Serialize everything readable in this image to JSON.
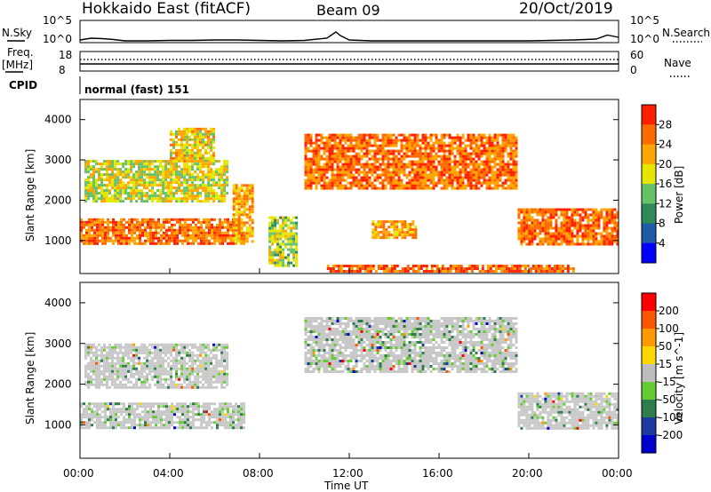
{
  "header": {
    "station_title": "Hokkaido East (fitACF)",
    "beam": "Beam 09",
    "date": "20/Oct/2019"
  },
  "nsky_panel": {
    "left_label": "N.Sky",
    "right_label": "N.Search",
    "left_ticks": [
      "10^5",
      "10^0"
    ],
    "right_ticks": [
      "10^5",
      "10^0"
    ]
  },
  "freq_panel": {
    "left_label_line1": "Freq.",
    "left_label_line2": "[MHz]",
    "left_ticks": [
      "18",
      "8"
    ],
    "right_label": "Nave",
    "right_ticks": [
      "60",
      "0"
    ]
  },
  "cpid_panel": {
    "label": "CPID",
    "mode_text": "normal (fast) 151"
  },
  "x_axis": {
    "label": "Time UT",
    "ticks": [
      "00:00",
      "04:00",
      "08:00",
      "12:00",
      "16:00",
      "20:00",
      "00:00"
    ]
  },
  "colors": {
    "power_scale": [
      "#0000ff",
      "#1f5aa8",
      "#2e8b57",
      "#66c266",
      "#e5e500",
      "#ffa500",
      "#ff6a00",
      "#ff2000"
    ],
    "velocity_scale": [
      "#0000cc",
      "#1a3aa0",
      "#2e7d4a",
      "#66cc33",
      "#bdbdbd",
      "#ffd700",
      "#ff9900",
      "#ff5500",
      "#ff0000"
    ],
    "grey": "#c8c8c8",
    "white": "#ffffff"
  },
  "chart_data": [
    {
      "type": "line",
      "name": "nsky-nsearch",
      "x_range_hours": [
        0,
        24
      ],
      "ylim": [
        0,
        5
      ],
      "series": [
        {
          "name": "N.Sky",
          "x": [
            0,
            0.5,
            1,
            1.5,
            2,
            3,
            4,
            5,
            6,
            7,
            8,
            9,
            10,
            11,
            11.4,
            11.6,
            12,
            13,
            14,
            16,
            18,
            20,
            21,
            22,
            23,
            23.5,
            24
          ],
          "values": [
            0.6,
            1.0,
            0.9,
            0.7,
            0.4,
            0.4,
            0.5,
            0.5,
            0.6,
            0.6,
            0.5,
            0.4,
            0.5,
            1.0,
            2.4,
            1.6,
            0.6,
            0.4,
            0.4,
            0.4,
            0.4,
            0.4,
            0.5,
            0.6,
            0.8,
            1.7,
            1.2
          ]
        }
      ]
    },
    {
      "type": "line",
      "name": "freq-nave",
      "x_range_hours": [
        0,
        24
      ],
      "series": [
        {
          "name": "Freq.",
          "values": [
            11,
            11
          ]
        },
        {
          "name": "Nave",
          "values": [
            27,
            27
          ]
        }
      ]
    },
    {
      "type": "heatmap",
      "name": "power",
      "title": "",
      "xlabel": "",
      "ylabel": "Slant Range [km]",
      "x_range_hours": [
        0,
        24
      ],
      "ylim_km": [
        180,
        4500
      ],
      "y_ticks": [
        "1000",
        "2000",
        "3000",
        "4000"
      ],
      "colorbar_label": "Power [dB]",
      "colorbar_ticks": [
        "4",
        "8",
        "12",
        "16",
        "20",
        "24",
        "28"
      ],
      "regions": [
        {
          "t0": 0.0,
          "t1": 7.3,
          "r0": 900,
          "r1": 1550,
          "level": 0.8
        },
        {
          "t0": 0.2,
          "t1": 6.5,
          "r0": 1950,
          "r1": 3000,
          "level": 0.55
        },
        {
          "t0": 4.0,
          "t1": 6.0,
          "r0": 3000,
          "r1": 3800,
          "level": 0.6
        },
        {
          "t0": 6.8,
          "t1": 7.7,
          "r0": 1000,
          "r1": 2400,
          "level": 0.7
        },
        {
          "t0": 8.4,
          "t1": 9.6,
          "r0": 400,
          "r1": 1600,
          "level": 0.5
        },
        {
          "t0": 10.0,
          "t1": 19.5,
          "r0": 2300,
          "r1": 3650,
          "level": 0.8
        },
        {
          "t0": 13.0,
          "t1": 15.0,
          "r0": 1100,
          "r1": 1500,
          "level": 0.7
        },
        {
          "t0": 19.5,
          "t1": 24.0,
          "r0": 900,
          "r1": 1800,
          "level": 0.8
        },
        {
          "t0": 11.0,
          "t1": 22.0,
          "r0": 250,
          "r1": 400,
          "level": 0.85
        }
      ]
    },
    {
      "type": "heatmap",
      "name": "velocity",
      "title": "",
      "xlabel": "Time UT",
      "ylabel": "Slant Range [km]",
      "x_range_hours": [
        0,
        24
      ],
      "ylim_km": [
        180,
        4500
      ],
      "y_ticks": [
        "1000",
        "2000",
        "3000",
        "4000"
      ],
      "colorbar_label": "Velocity [m s^-1]",
      "colorbar_ticks": [
        "200",
        "100",
        "50",
        "15",
        "-15",
        "-50",
        "-100",
        "-200"
      ],
      "regions": [
        {
          "t0": 0.0,
          "t1": 7.3,
          "r0": 900,
          "r1": 1550,
          "level": 0.5
        },
        {
          "t0": 0.2,
          "t1": 6.5,
          "r0": 1950,
          "r1": 3000,
          "level": 0.5
        },
        {
          "t0": 10.0,
          "t1": 19.5,
          "r0": 2300,
          "r1": 3650,
          "level": 0.5
        },
        {
          "t0": 19.5,
          "t1": 24.0,
          "r0": 900,
          "r1": 1800,
          "level": 0.5
        }
      ]
    }
  ]
}
